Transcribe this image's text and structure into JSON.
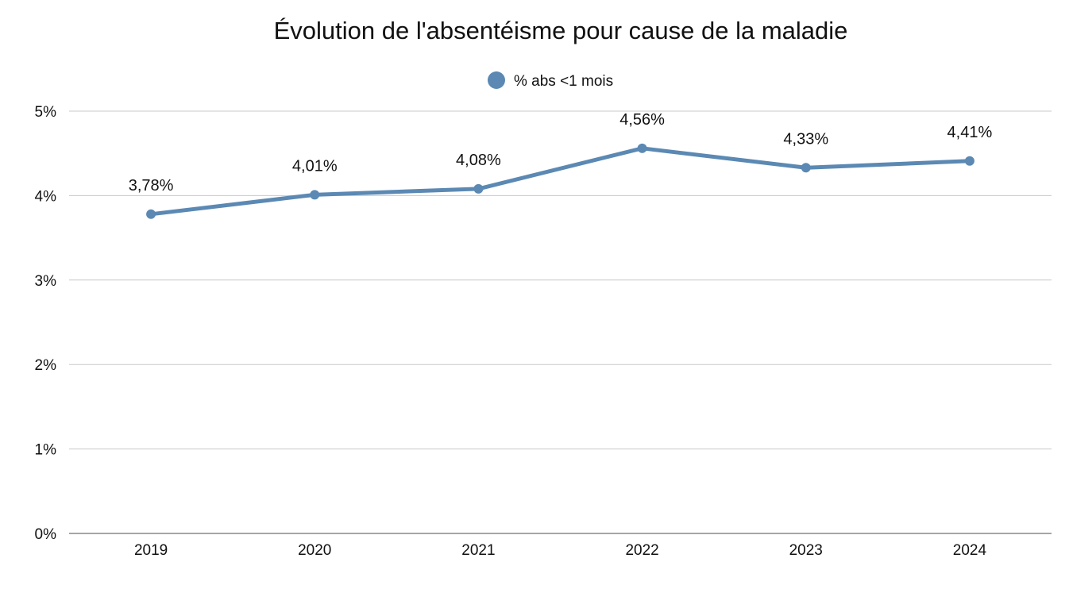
{
  "chart_data": {
    "type": "line",
    "title": "Évolution de l'absentéisme pour cause de la maladie",
    "xlabel": "",
    "ylabel": "",
    "categories": [
      "2019",
      "2020",
      "2021",
      "2022",
      "2023",
      "2024"
    ],
    "series": [
      {
        "name": "% abs <1 mois",
        "values": [
          3.78,
          4.01,
          4.08,
          4.56,
          4.33,
          4.41
        ],
        "data_labels": [
          "3,78%",
          "4,01%",
          "4,08%",
          "4,56%",
          "4,33%",
          "4,41%"
        ],
        "color": "#5b89b3"
      }
    ],
    "ylim": [
      0,
      5
    ],
    "y_ticks": [
      0,
      1,
      2,
      3,
      4,
      5
    ],
    "y_tick_labels": [
      "0%",
      "1%",
      "2%",
      "3%",
      "4%",
      "5%"
    ],
    "grid": true,
    "legend_position": "top-center",
    "colors": {
      "series": "#5b89b3",
      "grid": "#c9c9c9",
      "axis": "#888888",
      "text": "#111111"
    }
  }
}
